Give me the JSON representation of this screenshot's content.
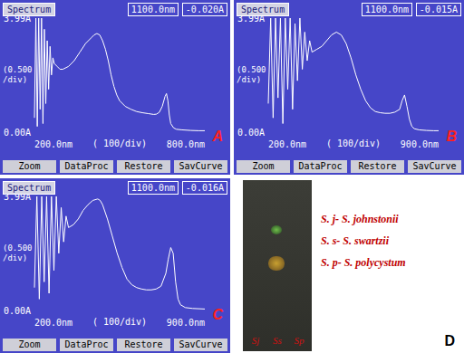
{
  "chart_data": [
    {
      "type": "line",
      "panel": "A",
      "title": "Spectrum",
      "annotations": [
        "1100.0nm",
        "-0.020A"
      ],
      "ylabel": "(0.500 /div)",
      "xlabel": "( 100/div)",
      "buttons": [
        "Zoom",
        "DataProc",
        "Restore",
        "SavCurve"
      ],
      "color": "#ffffff",
      "grid": false,
      "xlim": [
        200,
        800
      ],
      "xticks": [
        {
          "value": 200,
          "label": "200.0nm"
        },
        {
          "value": 800,
          "label": "800.0nm"
        }
      ],
      "ylim": [
        0,
        3.99
      ],
      "yticks": [
        {
          "value": 0,
          "label": "0.00A"
        },
        {
          "value": 3.99,
          "label": "3.99A"
        }
      ],
      "x": [
        200,
        205,
        210,
        215,
        220,
        225,
        230,
        235,
        240,
        245,
        250,
        255,
        260,
        265,
        270,
        280,
        290,
        300,
        320,
        340,
        360,
        380,
        400,
        410,
        420,
        430,
        440,
        450,
        460,
        470,
        480,
        490,
        500,
        520,
        540,
        560,
        580,
        600,
        620,
        630,
        640,
        650,
        660,
        665,
        670,
        675,
        680,
        690,
        700,
        720,
        750,
        780,
        800
      ],
      "values": [
        0.5,
        3.99,
        0.2,
        3.99,
        0.8,
        3.99,
        0.3,
        3.6,
        1.0,
        3.2,
        1.5,
        3.0,
        2.0,
        2.6,
        2.4,
        2.3,
        2.2,
        2.2,
        2.3,
        2.5,
        2.8,
        3.1,
        3.3,
        3.4,
        3.45,
        3.4,
        3.2,
        2.9,
        2.5,
        2.0,
        1.6,
        1.3,
        1.1,
        0.9,
        0.8,
        0.72,
        0.68,
        0.65,
        0.62,
        0.63,
        0.7,
        0.9,
        1.25,
        1.35,
        1.1,
        0.6,
        0.3,
        0.15,
        0.1,
        0.08,
        0.06,
        0.05,
        0.05
      ]
    },
    {
      "type": "line",
      "panel": "B",
      "title": "Spectrum",
      "annotations": [
        "1100.0nm",
        "-0.015A"
      ],
      "ylabel": "(0.500 /div)",
      "xlabel": "( 100/div)",
      "buttons": [
        "Zoom",
        "DataProc",
        "Restore",
        "SavCurve"
      ],
      "color": "#ffffff",
      "grid": false,
      "xlim": [
        200,
        900
      ],
      "xticks": [
        {
          "value": 200,
          "label": "200.0nm"
        },
        {
          "value": 900,
          "label": "900.0nm"
        }
      ],
      "ylim": [
        0,
        3.99
      ],
      "yticks": [
        {
          "value": 0,
          "label": "0.00A"
        },
        {
          "value": 3.99,
          "label": "3.99A"
        }
      ],
      "x": [
        200,
        210,
        220,
        230,
        240,
        250,
        260,
        270,
        280,
        290,
        300,
        310,
        320,
        330,
        340,
        350,
        360,
        370,
        380,
        400,
        420,
        440,
        460,
        480,
        500,
        520,
        540,
        560,
        580,
        600,
        620,
        640,
        660,
        680,
        700,
        720,
        740,
        750,
        760,
        770,
        780,
        790,
        800,
        820,
        850,
        880,
        900
      ],
      "values": [
        1.0,
        3.99,
        0.5,
        3.99,
        1.2,
        3.99,
        0.3,
        3.99,
        1.5,
        3.99,
        0.8,
        3.8,
        1.8,
        3.99,
        2.2,
        3.5,
        2.5,
        3.2,
        2.8,
        2.9,
        3.0,
        3.2,
        3.4,
        3.5,
        3.4,
        3.1,
        2.6,
        2.0,
        1.5,
        1.1,
        0.85,
        0.72,
        0.68,
        0.66,
        0.66,
        0.7,
        0.8,
        1.1,
        1.3,
        0.9,
        0.45,
        0.2,
        0.12,
        0.08,
        0.06,
        0.05,
        0.05
      ]
    },
    {
      "type": "line",
      "panel": "C",
      "title": "Spectrum",
      "annotations": [
        "1100.0nm",
        "-0.016A"
      ],
      "ylabel": "(0.500 /div)",
      "xlabel": "( 100/div)",
      "buttons": [
        "Zoom",
        "DataProc",
        "Restore",
        "SavCurve"
      ],
      "color": "#ffffff",
      "grid": false,
      "xlim": [
        200,
        900
      ],
      "xticks": [
        {
          "value": 200,
          "label": "200.0nm"
        },
        {
          "value": 900,
          "label": "900.0nm"
        }
      ],
      "ylim": [
        0,
        3.99
      ],
      "yticks": [
        {
          "value": 0,
          "label": "0.00A"
        },
        {
          "value": 3.99,
          "label": "3.99A"
        }
      ],
      "x": [
        200,
        210,
        220,
        230,
        240,
        250,
        260,
        270,
        280,
        290,
        300,
        310,
        320,
        330,
        340,
        360,
        380,
        400,
        420,
        440,
        460,
        470,
        480,
        500,
        520,
        540,
        560,
        580,
        600,
        620,
        640,
        660,
        680,
        700,
        720,
        740,
        750,
        760,
        770,
        780,
        790,
        800,
        820,
        850,
        900
      ],
      "values": [
        0.8,
        3.99,
        0.4,
        3.99,
        1.0,
        3.99,
        0.6,
        3.99,
        1.4,
        3.99,
        2.0,
        3.6,
        2.4,
        3.3,
        2.9,
        3.0,
        3.2,
        3.5,
        3.7,
        3.85,
        3.9,
        3.85,
        3.7,
        3.2,
        2.6,
        2.0,
        1.5,
        1.1,
        0.9,
        0.8,
        0.75,
        0.72,
        0.72,
        0.75,
        0.85,
        1.3,
        1.8,
        2.2,
        2.0,
        1.0,
        0.4,
        0.2,
        0.1,
        0.07,
        0.05
      ]
    }
  ],
  "panel_d": {
    "panel": "D",
    "lanes": [
      "Sj",
      "Ss",
      "Sp"
    ],
    "key": [
      "S. j- S. johnstonii",
      "S. s- S. swartzii",
      "S. p- S. polycystum"
    ]
  }
}
